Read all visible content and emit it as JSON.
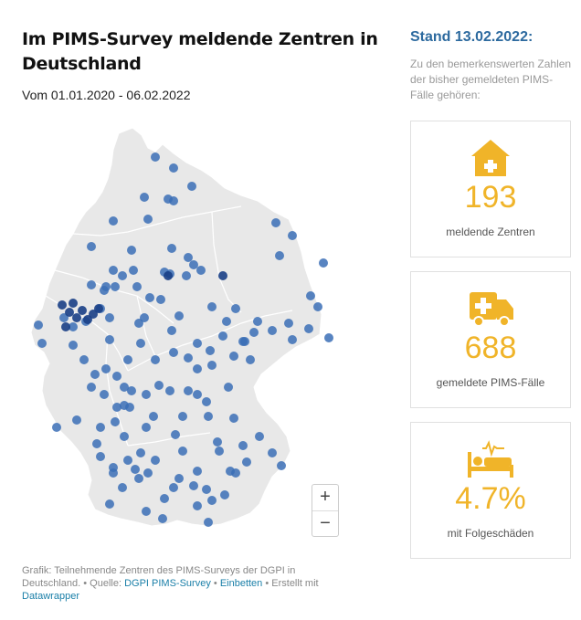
{
  "title": "Im PIMS-Survey meldende Zentren in Deutschland",
  "subtitle": "Vom 01.01.2020 - 06.02.2022",
  "map": {
    "zoom_in": "+",
    "zoom_out": "−",
    "dot_color": "#3b6fb6",
    "dot_dark_color": "#1a3f86",
    "land_color": "#e8e8e8"
  },
  "footer": {
    "prefix": "Grafik: Teilnehmende Zentren des PIMS-Surveys der DGPI in Deutschland. • Quelle: ",
    "source": "DGPI PIMS-Survey",
    "sep1": " • ",
    "embed": "Einbetten",
    "sep2": " • Erstellt mit ",
    "tool": "Datawrapper"
  },
  "sidebar": {
    "stand": "Stand 13.02.2022:",
    "intro": "Zu den bemerkenswerten Zahlen der bisher gemeldeten PIMS-Fälle gehören:",
    "cards": [
      {
        "icon": "hospital-icon",
        "value": "193",
        "label": "meldende Zentren"
      },
      {
        "icon": "ambulance-icon",
        "value": "688",
        "label": "gemeldete PIMS-Fälle"
      },
      {
        "icon": "patient-bed-icon",
        "value": "4.7%",
        "label": "mit Folgeschäden"
      }
    ]
  },
  "colors": {
    "accent": "#f0b429",
    "title_blue": "#2d6a9f"
  }
}
